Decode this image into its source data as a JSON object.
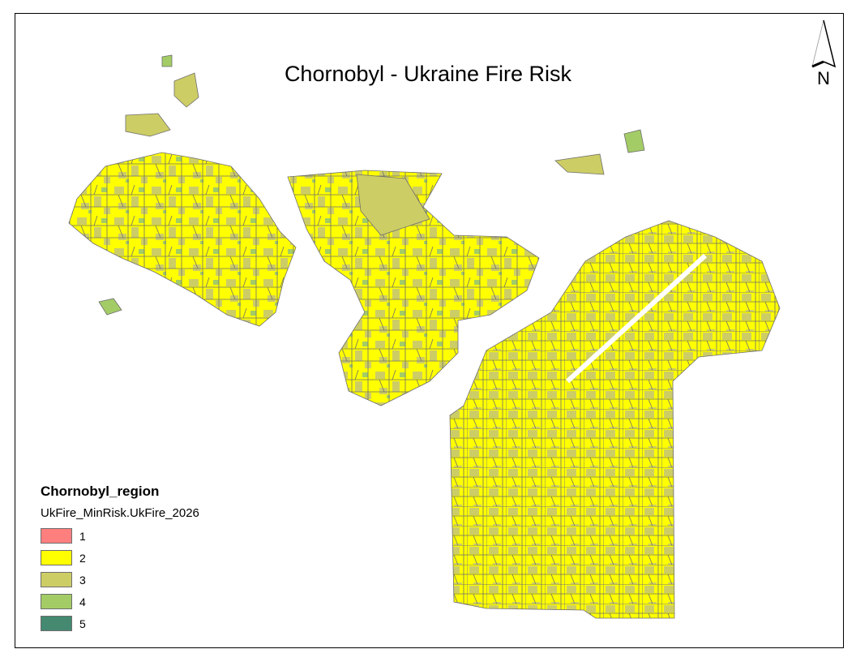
{
  "title": "Chornobyl - Ukraine Fire Risk",
  "north_arrow": {
    "label": "N",
    "icon": "north-arrow-icon"
  },
  "legend": {
    "layer": "Chornobyl_region",
    "field": "UkFire_MinRisk.UkFire_2026",
    "classes": [
      {
        "label": "1",
        "color": "#FF7F7F"
      },
      {
        "label": "2",
        "color": "#FFFF00"
      },
      {
        "label": "3",
        "color": "#CDCD66"
      },
      {
        "label": "4",
        "color": "#A3CC66"
      },
      {
        "label": "5",
        "color": "#448970"
      }
    ]
  },
  "outline_color": "#6E6E6E"
}
